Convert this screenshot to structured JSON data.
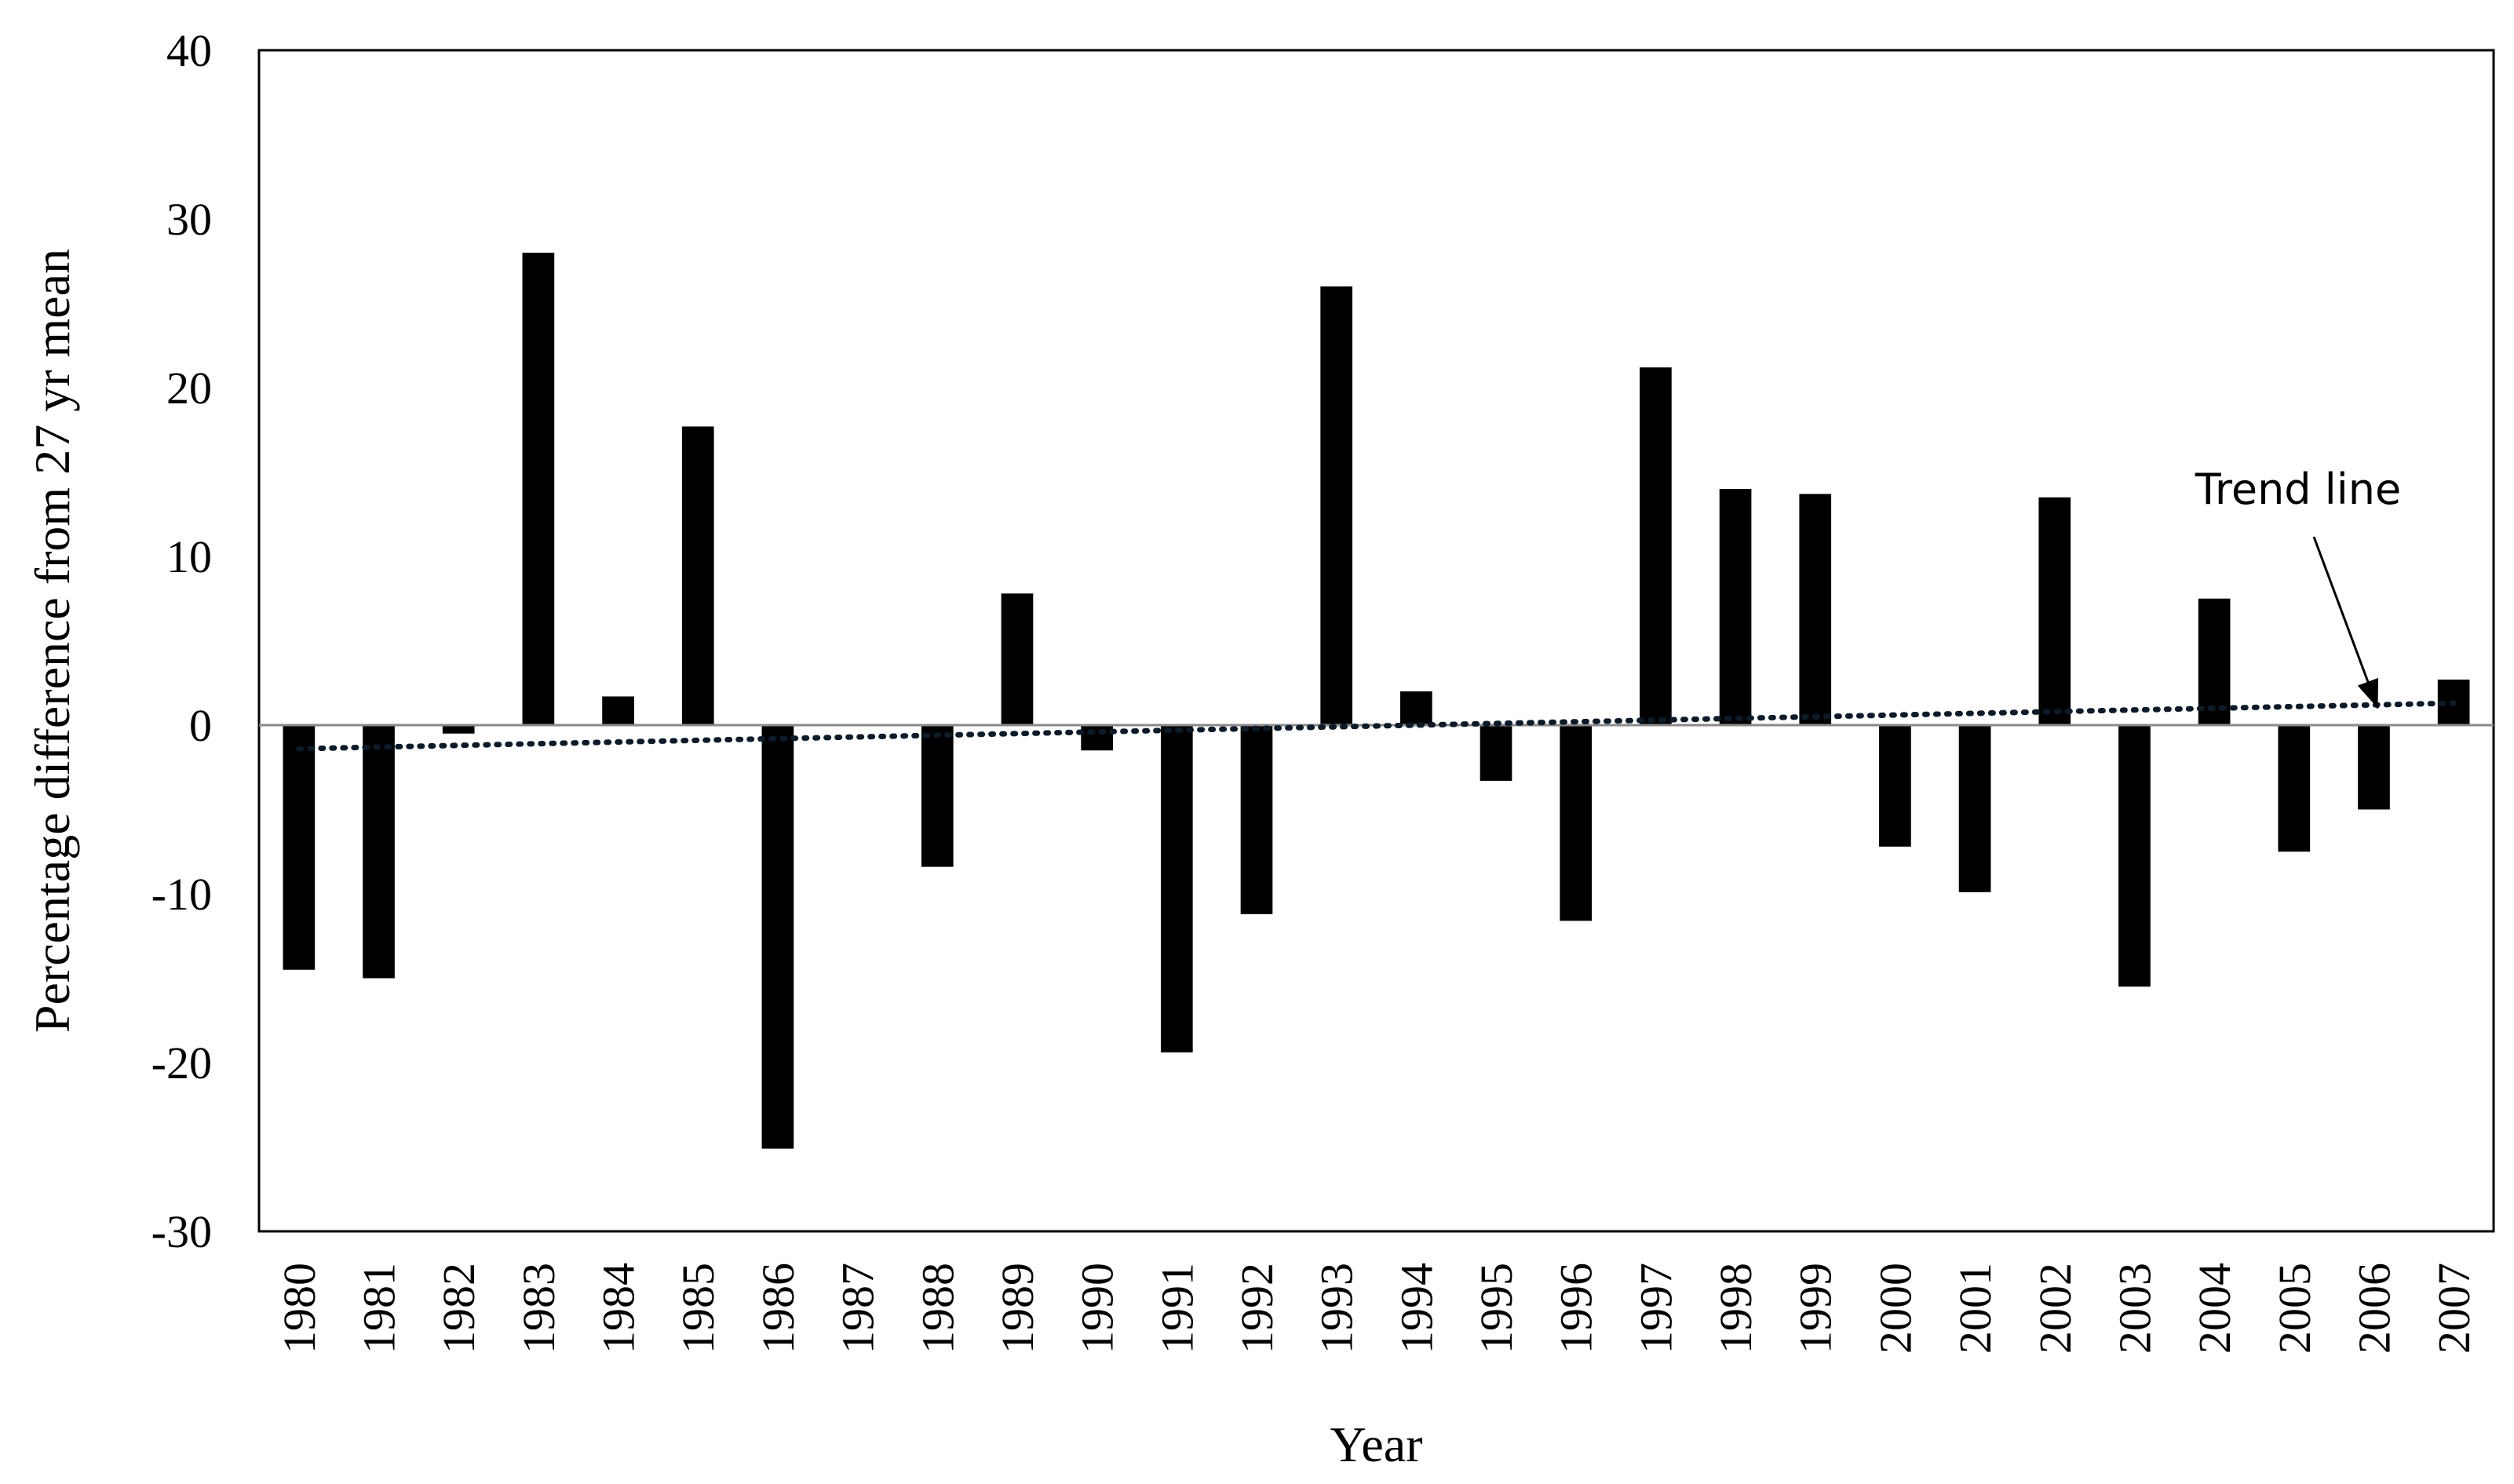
{
  "chart_data": {
    "type": "bar",
    "title": "",
    "xlabel": "Year",
    "ylabel": "Percentage difference from 27 yr mean",
    "ylim": [
      -30,
      40
    ],
    "yticks": [
      -30,
      -20,
      -10,
      0,
      10,
      20,
      30,
      40
    ],
    "grid": false,
    "legend": "none",
    "bar_color": "#000000",
    "categories": [
      "1980",
      "1981",
      "1982",
      "1983",
      "1984",
      "1985",
      "1986",
      "1987",
      "1988",
      "1989",
      "1990",
      "1991",
      "1992",
      "1993",
      "1994",
      "1995",
      "1996",
      "1997",
      "1998",
      "1999",
      "2000",
      "2001",
      "2002",
      "2003",
      "2004",
      "2005",
      "2006",
      "2007"
    ],
    "values": [
      -14.5,
      -15.0,
      -0.5,
      28.0,
      1.7,
      17.7,
      -25.1,
      0,
      -8.4,
      7.8,
      -1.5,
      -19.4,
      -11.2,
      26.0,
      2.0,
      -3.3,
      -11.6,
      21.2,
      14.0,
      13.7,
      -7.2,
      -9.9,
      13.5,
      -15.5,
      7.5,
      -7.5,
      -5.0,
      2.7
    ],
    "trend_line": {
      "style": "dotted",
      "start": {
        "x": "1980",
        "y": -1.4
      },
      "end": {
        "x": "2007",
        "y": 1.3
      }
    },
    "annotations": [
      {
        "text": "Trend line",
        "points_to": {
          "x": "2006",
          "y": 1.0
        }
      }
    ]
  }
}
